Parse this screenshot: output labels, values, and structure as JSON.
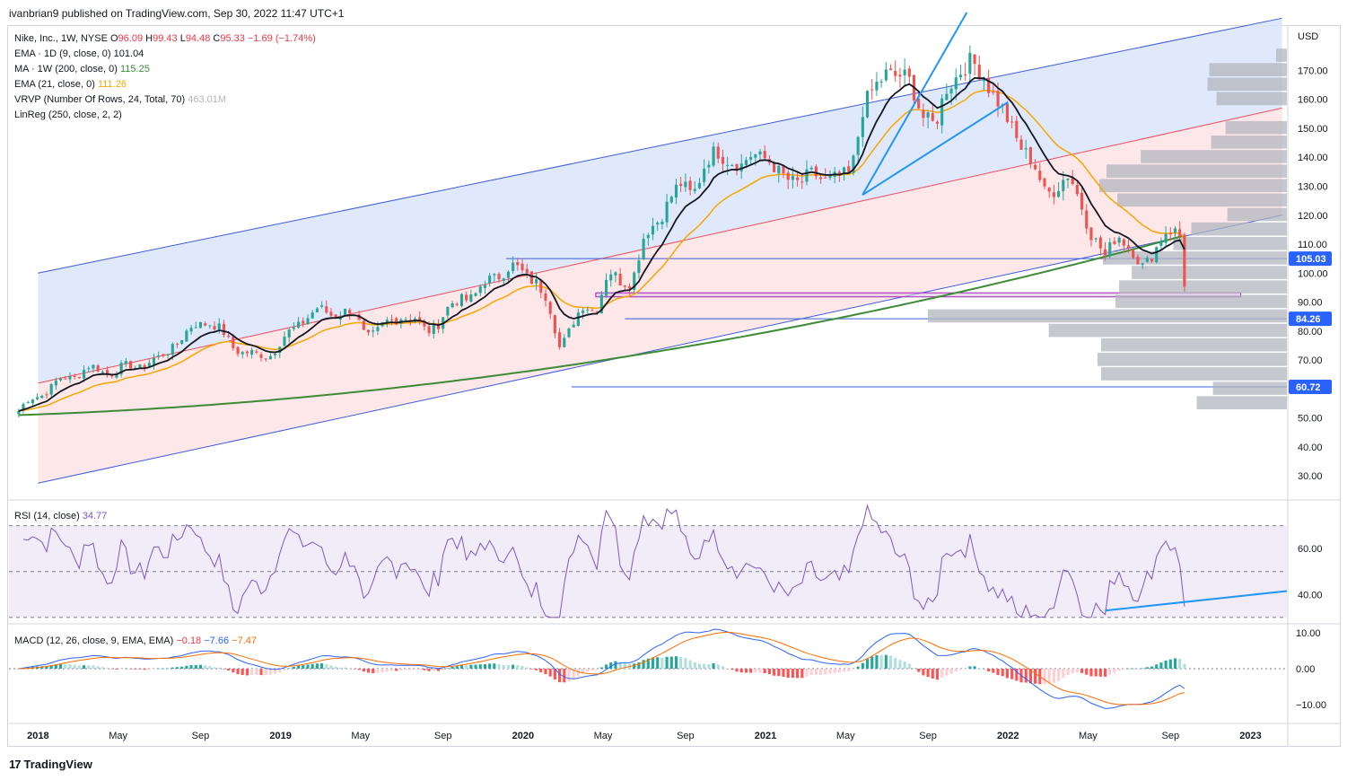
{
  "header": {
    "published": "ivanbrian9 published on TradingView.com, Sep 30, 2022 11:47 UTC+1"
  },
  "legend": {
    "symbol": "Nike, Inc., 1W, NYSE",
    "o_label": "O",
    "o_val": "96.09",
    "h_label": "H",
    "h_val": "99.43",
    "l_label": "L",
    "l_val": "94.48",
    "c_label": "C",
    "c_val": "95.33",
    "change": "−1.69 (−1.74%)",
    "ema9_label": "EMA · 1D (9, close, 0)",
    "ema9_val": "101.04",
    "ma200_label": "MA · 1W (200, close, 0)",
    "ma200_val": "115.25",
    "ema21_label": "EMA (21, close, 0)",
    "ema21_val": "111.26",
    "vrvp_label": "VRVP (Number Of Rows, 24, Total, 70)",
    "vrvp_val": "463.01M",
    "linreg_label": "LinReg (250, close, 2, 2)"
  },
  "rsi": {
    "label": "RSI (14, close)",
    "value": "34.77"
  },
  "macd": {
    "label": "MACD (12, 26, close, 9, EMA, EMA)",
    "v1": "−0.18",
    "v2": "−7.66",
    "v3": "−7.47"
  },
  "brand": {
    "name": "TradingView",
    "logo": "17"
  },
  "colors": {
    "up": "#26a69a",
    "down": "#ef5350",
    "ema9": "#131722",
    "ema21": "#f7a600",
    "ma200": "#3d8b37",
    "channel_blue": "#3b5bdb",
    "channel_red": "#f04d5a",
    "rsi": "#7e57c2",
    "trend": "#2196f3",
    "macd": "#2962ff",
    "signal": "#ff6d00"
  },
  "chart_data": [
    {
      "type": "candlestick",
      "title": "Nike, Inc., 1W, NYSE",
      "currency": "USD",
      "ylim": [
        22,
        185
      ],
      "y_ticks": [
        "30.00",
        "40.00",
        "50.00",
        "60.00",
        "70.00",
        "80.00",
        "90.00",
        "100.00",
        "110.00",
        "120.00",
        "130.00",
        "140.00",
        "150.00",
        "160.00",
        "170.00"
      ],
      "x_ticks": [
        "2018",
        "May",
        "Sep",
        "2019",
        "May",
        "Sep",
        "2020",
        "May",
        "Sep",
        "2021",
        "May",
        "Sep",
        "2022",
        "May",
        "Sep",
        "2023"
      ],
      "close_path": [
        [
          2017.9,
          51
        ],
        [
          2018.0,
          58
        ],
        [
          2018.1,
          63
        ],
        [
          2018.2,
          67
        ],
        [
          2018.3,
          66
        ],
        [
          2018.4,
          68
        ],
        [
          2018.5,
          70
        ],
        [
          2018.55,
          75
        ],
        [
          2018.6,
          78
        ],
        [
          2018.65,
          82
        ],
        [
          2018.7,
          84
        ],
        [
          2018.75,
          80
        ],
        [
          2018.8,
          75
        ],
        [
          2018.85,
          73
        ],
        [
          2018.9,
          71
        ],
        [
          2018.95,
          72
        ],
        [
          2019.0,
          76
        ],
        [
          2019.05,
          80
        ],
        [
          2019.1,
          85
        ],
        [
          2019.15,
          87
        ],
        [
          2019.2,
          86
        ],
        [
          2019.25,
          87
        ],
        [
          2019.3,
          86
        ],
        [
          2019.35,
          79
        ],
        [
          2019.4,
          80
        ],
        [
          2019.45,
          83
        ],
        [
          2019.5,
          86
        ],
        [
          2019.55,
          84
        ],
        [
          2019.6,
          80
        ],
        [
          2019.65,
          83
        ],
        [
          2019.7,
          88
        ],
        [
          2019.75,
          92
        ],
        [
          2019.8,
          92
        ],
        [
          2019.85,
          97
        ],
        [
          2019.9,
          100
        ],
        [
          2019.95,
          102
        ],
        [
          2020.0,
          100
        ],
        [
          2020.05,
          98
        ],
        [
          2020.1,
          90
        ],
        [
          2020.15,
          75
        ],
        [
          2020.2,
          82
        ],
        [
          2020.25,
          88
        ],
        [
          2020.3,
          88
        ],
        [
          2020.35,
          100
        ],
        [
          2020.4,
          97
        ],
        [
          2020.45,
          98
        ],
        [
          2020.5,
          112
        ],
        [
          2020.55,
          118
        ],
        [
          2020.6,
          125
        ],
        [
          2020.65,
          130
        ],
        [
          2020.7,
          128
        ],
        [
          2020.75,
          137
        ],
        [
          2020.8,
          142
        ],
        [
          2020.85,
          140
        ],
        [
          2020.9,
          136
        ],
        [
          2020.95,
          142
        ],
        [
          2021.0,
          140
        ],
        [
          2021.05,
          134
        ],
        [
          2021.1,
          133
        ],
        [
          2021.15,
          131
        ],
        [
          2021.2,
          134
        ],
        [
          2021.3,
          132
        ],
        [
          2021.35,
          134
        ],
        [
          2021.4,
          157
        ],
        [
          2021.45,
          163
        ],
        [
          2021.5,
          170
        ],
        [
          2021.55,
          168
        ],
        [
          2021.6,
          165
        ],
        [
          2021.65,
          155
        ],
        [
          2021.7,
          150
        ],
        [
          2021.75,
          165
        ],
        [
          2021.8,
          170
        ],
        [
          2021.85,
          172
        ],
        [
          2021.9,
          169
        ],
        [
          2021.95,
          160
        ],
        [
          2022.0,
          152
        ],
        [
          2022.05,
          145
        ],
        [
          2022.1,
          138
        ],
        [
          2022.15,
          128
        ],
        [
          2022.2,
          130
        ],
        [
          2022.25,
          133
        ],
        [
          2022.3,
          125
        ],
        [
          2022.35,
          112
        ],
        [
          2022.4,
          105
        ],
        [
          2022.45,
          115
        ],
        [
          2022.5,
          108
        ],
        [
          2022.55,
          102
        ],
        [
          2022.6,
          108
        ],
        [
          2022.65,
          113
        ],
        [
          2022.7,
          115
        ],
        [
          2022.75,
          108
        ],
        [
          2022.8,
          106
        ],
        [
          2022.85,
          96
        ]
      ],
      "series_values": {
        "ema9_last": 101.04,
        "ma200_last": 115.25,
        "ema21_last": 111.26
      },
      "price_labels": [
        "105.03",
        "84.26",
        "60.72"
      ],
      "price_label_values": [
        105.03,
        84.26,
        60.72
      ],
      "current_price": 95.33,
      "vrvp_rows": [
        {
          "price": 175,
          "volume": 0.06
        },
        {
          "price": 170,
          "volume": 0.43
        },
        {
          "price": 165,
          "volume": 0.44
        },
        {
          "price": 160,
          "volume": 0.39
        },
        {
          "price": 150,
          "volume": 0.34
        },
        {
          "price": 145,
          "volume": 0.42
        },
        {
          "price": 140,
          "volume": 0.81
        },
        {
          "price": 135,
          "volume": 1.0
        },
        {
          "price": 130,
          "volume": 1.04
        },
        {
          "price": 125,
          "volume": 0.94
        },
        {
          "price": 120,
          "volume": 0.33
        },
        {
          "price": 115,
          "volume": 0.53
        },
        {
          "price": 110,
          "volume": 0.63
        },
        {
          "price": 105,
          "volume": 1.02
        },
        {
          "price": 100,
          "volume": 0.86
        },
        {
          "price": 95,
          "volume": 0.93
        },
        {
          "price": 90,
          "volume": 0.95
        },
        {
          "price": 85,
          "volume": 1.99
        },
        {
          "price": 80,
          "volume": 1.32
        },
        {
          "price": 75,
          "volume": 1.03
        },
        {
          "price": 70,
          "volume": 1.05
        },
        {
          "price": 65,
          "volume": 1.03
        },
        {
          "price": 60,
          "volume": 0.41
        },
        {
          "price": 55,
          "volume": 0.5
        }
      ]
    },
    {
      "type": "line",
      "title": "RSI (14, close)",
      "ylim": [
        28,
        80
      ],
      "y_ticks": [
        "40.00",
        "60.00"
      ],
      "levels": [
        70,
        50,
        30
      ],
      "last": 34.77
    },
    {
      "type": "histogram",
      "title": "MACD (12, 26, close, 9, EMA, EMA)",
      "ylim": [
        -15,
        12
      ],
      "y_ticks": [
        "10.00",
        "0.00",
        "−10.00"
      ],
      "values": {
        "histogram": -0.18,
        "macd": -7.66,
        "signal": -7.47
      }
    }
  ]
}
